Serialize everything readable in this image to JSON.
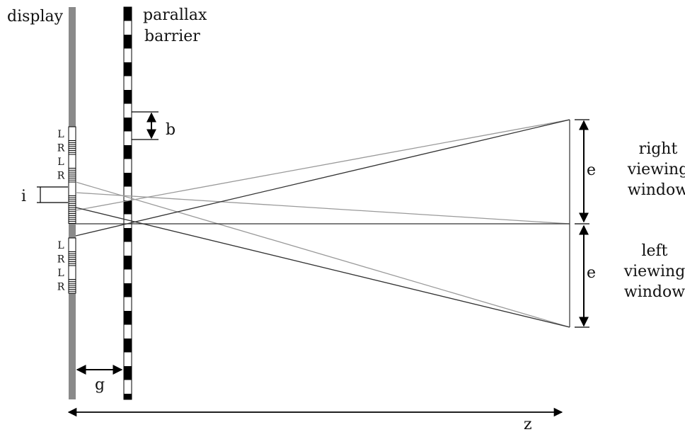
{
  "labels": {
    "display": "display",
    "parallax_barrier_line1": "parallax",
    "parallax_barrier_line2": "barrier",
    "b": "b",
    "i": "i",
    "g": "g",
    "z": "z",
    "e_top": "e",
    "e_bottom": "e",
    "right_window_line1": "right",
    "right_window_line2": "viewing",
    "right_window_line3": "window",
    "left_window_line1": "left",
    "left_window_line2": "viewing",
    "left_window_line3": "window"
  },
  "pixel_labels": [
    "L",
    "R",
    "L",
    "R",
    "L",
    "R",
    "L",
    "R"
  ],
  "colors": {
    "display_panel": "#8a8a8a",
    "barrier": "#000000",
    "dark_ray": "#333333",
    "light_ray": "#9a9a9a",
    "arrow": "#000000"
  }
}
